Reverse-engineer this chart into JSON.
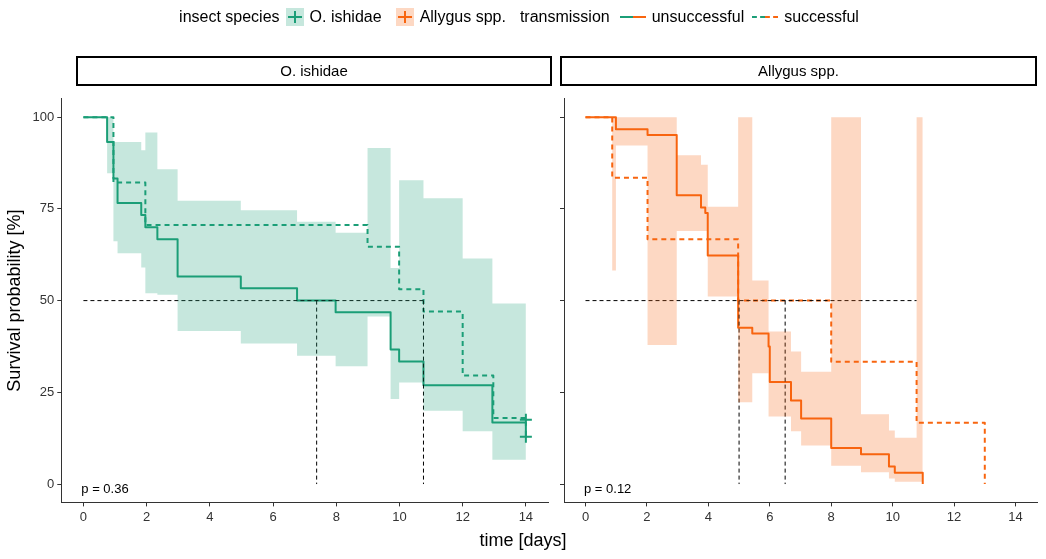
{
  "chart_data": [
    {
      "type": "step",
      "title": "O. ishidae",
      "legend_title": "insect species",
      "xlabel": "time [days]",
      "ylabel": "Survival probability [%]",
      "xlim": [
        -0.7,
        14.7
      ],
      "xticks": [
        0,
        2,
        4,
        6,
        8,
        10,
        12,
        14
      ],
      "ylim": [
        -5,
        105
      ],
      "yticks": [
        0,
        25,
        50,
        75,
        100
      ],
      "grid": false,
      "legend": "top",
      "annotations": [
        "p = 0.36"
      ],
      "series": [
        {
          "name": "unsuccessful",
          "color": "#1b9e77",
          "line_style": "solid",
          "x": [
            0,
            0.75,
            0.95,
            1.08,
            1.83,
            1.96,
            2.34,
            2.98,
            4.98,
            6.76,
            7.98,
            8.99,
            9.72,
            9.99,
            10.76,
            12,
            12.94,
            14,
            14
          ],
          "values": [
            100,
            93.2,
            83.3,
            76.6,
            73.3,
            70,
            66.7,
            56.6,
            53.4,
            50,
            46.8,
            46.8,
            36.7,
            33.4,
            26.9,
            26.9,
            16.8,
            16.8,
            12.9
          ],
          "lower": [
            100,
            84.7,
            66.2,
            62.9,
            59,
            52,
            51.6,
            41.7,
            38.3,
            35,
            32.1,
            45.7,
            23.2,
            27.7,
            20,
            14.4,
            6.6,
            6.6,
            6.6
          ],
          "upper": [
            100,
            100,
            93.2,
            93.2,
            91,
            95.8,
            85.8,
            77.2,
            74.6,
            71.5,
            68.5,
            91.6,
            58.9,
            82.8,
            77.9,
            61.5,
            49.2,
            49.2,
            49.2
          ]
        },
        {
          "name": "successful",
          "color": "#1b9e77",
          "line_style": "dashed",
          "x": [
            0,
            0.95,
            1.96,
            8.99,
            9.99,
            10.76,
            12,
            12.97,
            14
          ],
          "values": [
            100,
            82.2,
            70.6,
            64.7,
            53.1,
            47,
            29.6,
            18,
            18
          ]
        },
        {
          "type": "scatter",
          "color": "#1b9e77",
          "marker": "cross",
          "x": [
            14,
            14
          ],
          "values": [
            17.5,
            12.9
          ]
        },
        {
          "type": "line",
          "color": "#000000",
          "line_style": "dashed",
          "x": [
            0,
            10.76
          ],
          "values": [
            50,
            50
          ]
        },
        {
          "type": "line",
          "color": "#000000",
          "line_style": "dashed",
          "x": [
            7.38,
            7.38
          ],
          "values": [
            50,
            0
          ]
        },
        {
          "type": "line",
          "color": "#000000",
          "line_style": "dashed",
          "x": [
            10.76,
            10.76
          ],
          "values": [
            50,
            0
          ]
        }
      ]
    },
    {
      "type": "step",
      "title": "Allygus spp.",
      "legend_title": "transmission",
      "xlim": [
        -0.7,
        14.7
      ],
      "xticks": [
        0,
        2,
        4,
        6,
        8,
        10,
        12,
        14
      ],
      "ylim": [
        -5,
        105
      ],
      "yticks": [
        0,
        25,
        50,
        75,
        100
      ],
      "grid": false,
      "tick_labels": "x",
      "annotations": [
        "p = 0.12"
      ],
      "series": [
        {
          "name": "unsuccessful",
          "color": "#f8650f",
          "line_style": "solid",
          "x": [
            0,
            0.87,
            0.99,
            2.02,
            2.97,
            3.76,
            3.9,
            3.98,
            4.97,
            5.43,
            5.96,
            6.0,
            6.69,
            7.02,
            8.0,
            8.97,
            9.88,
            10.07,
            10.78,
            10.98
          ],
          "values": [
            100,
            100,
            96.7,
            95.1,
            78.7,
            75.4,
            73.9,
            62.3,
            42.6,
            41,
            37.5,
            27.8,
            22.8,
            17.9,
            9.8,
            8.1,
            4.8,
            3.1,
            3.1,
            0
          ],
          "lower": [
            100,
            58.2,
            92.3,
            37.9,
            69,
            69,
            69,
            51.1,
            22.3,
            30.2,
            18.4,
            18.4,
            14.4,
            10.5,
            5,
            3.2,
            1.5,
            0.6,
            0.6,
            0
          ],
          "upper": [
            100,
            100,
            100,
            100,
            89.6,
            87,
            87,
            75.6,
            100,
            55.5,
            41.6,
            41.6,
            36.1,
            30.6,
            100,
            19,
            14.6,
            12.6,
            100,
            0
          ]
        },
        {
          "name": "successful",
          "color": "#f8650f",
          "line_style": "dashed",
          "x": [
            0,
            0.87,
            2.02,
            4.97,
            8.0,
            10.78,
            13.0
          ],
          "values": [
            100,
            83.5,
            66.7,
            50,
            33.3,
            16.7,
            0
          ]
        },
        {
          "type": "line",
          "color": "#000000",
          "line_style": "dashed",
          "x": [
            0,
            10.78
          ],
          "values": [
            50,
            50
          ]
        },
        {
          "type": "line",
          "color": "#000000",
          "line_style": "dashed",
          "x": [
            5.0,
            5.0
          ],
          "values": [
            50,
            0
          ]
        },
        {
          "type": "line",
          "color": "#000000",
          "line_style": "dashed",
          "x": [
            6.5,
            6.5
          ],
          "values": [
            50,
            0
          ]
        }
      ]
    }
  ]
}
